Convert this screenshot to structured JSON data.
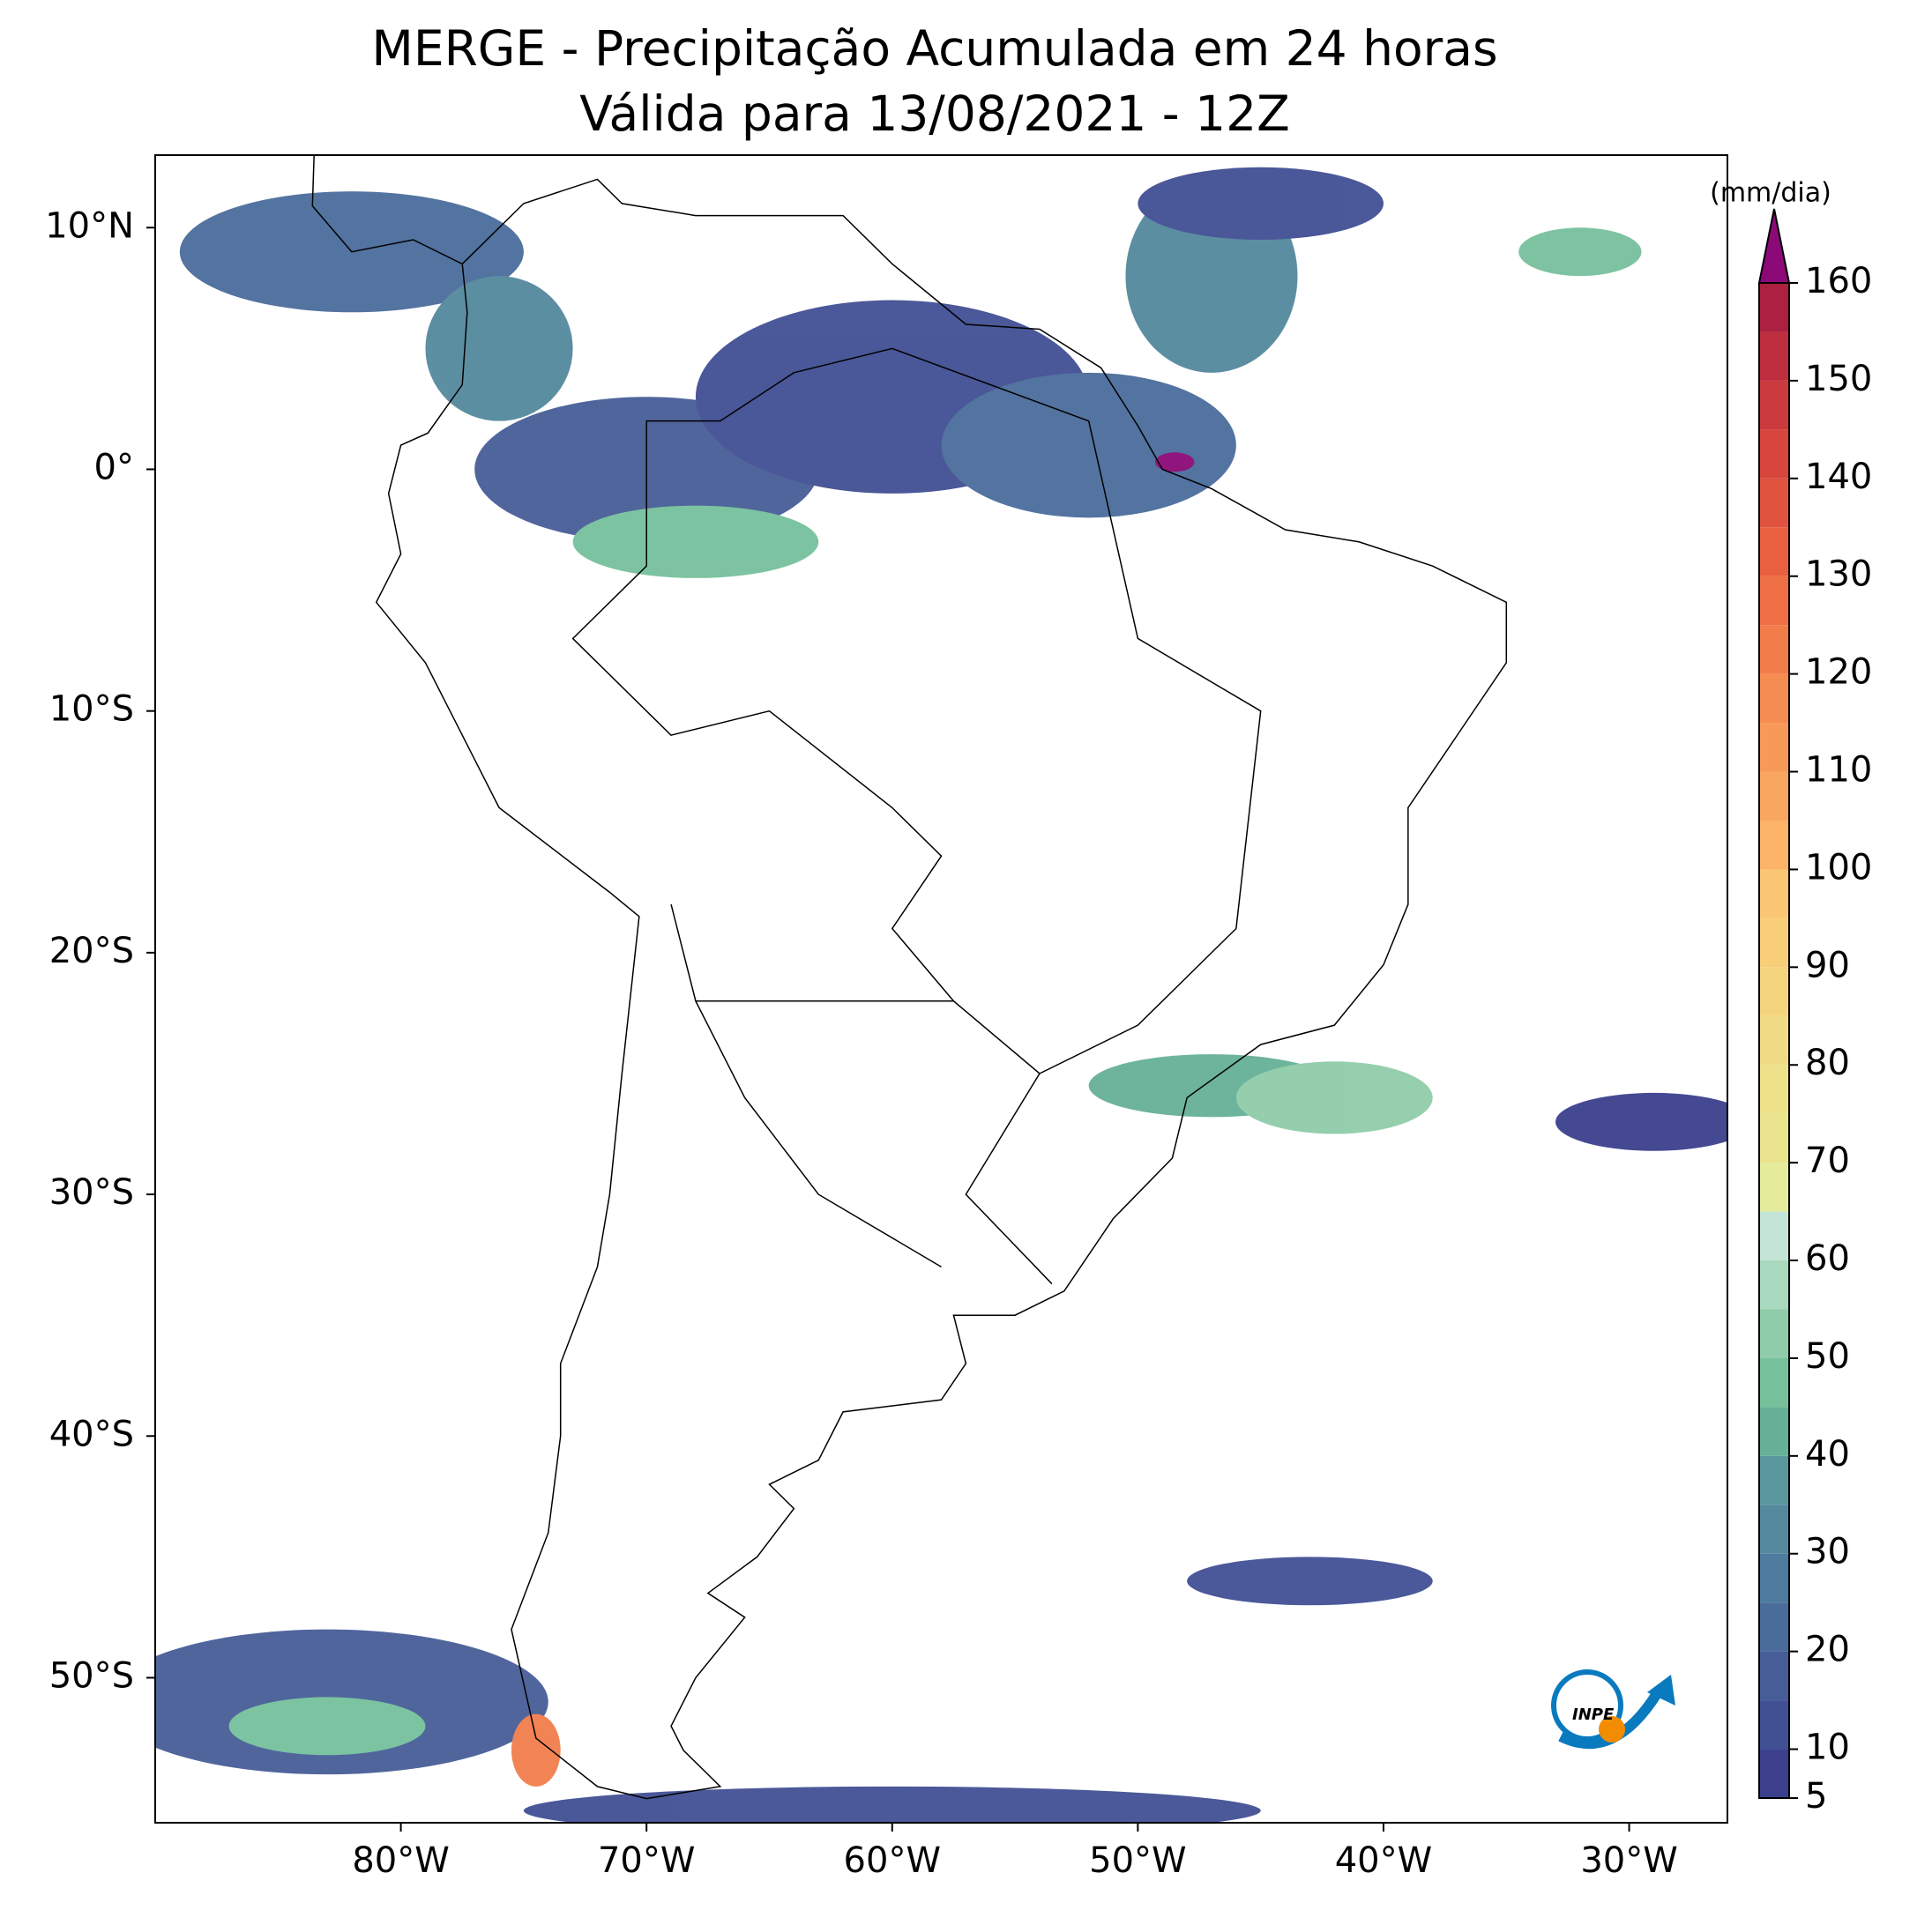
{
  "chart_data": {
    "type": "map",
    "title": "MERGE - Precipitação Acumulada em 24 horas",
    "subtitle": "Válida para 13/08/2021 - 12Z",
    "xlim": [
      -90,
      -26
    ],
    "ylim": [
      -56,
      13
    ],
    "xticks": [
      {
        "value": -80,
        "label": "80°W"
      },
      {
        "value": -70,
        "label": "70°W"
      },
      {
        "value": -60,
        "label": "60°W"
      },
      {
        "value": -50,
        "label": "50°W"
      },
      {
        "value": -40,
        "label": "40°W"
      },
      {
        "value": -30,
        "label": "30°W"
      }
    ],
    "yticks": [
      {
        "value": 10,
        "label": "10°N"
      },
      {
        "value": 0,
        "label": "0°"
      },
      {
        "value": -10,
        "label": "10°S"
      },
      {
        "value": -20,
        "label": "20°S"
      },
      {
        "value": -30,
        "label": "30°S"
      },
      {
        "value": -40,
        "label": "40°S"
      },
      {
        "value": -50,
        "label": "50°S"
      }
    ],
    "colorbar": {
      "label": "(mm/dia)",
      "levels": [
        5,
        10,
        15,
        20,
        25,
        30,
        35,
        40,
        45,
        50,
        55,
        60,
        65,
        70,
        75,
        80,
        85,
        90,
        95,
        100,
        105,
        110,
        115,
        120,
        125,
        130,
        135,
        140,
        145,
        150,
        155,
        160
      ],
      "colors": [
        "#3b3f8c",
        "#414f93",
        "#475d97",
        "#4a6c9b",
        "#4f7b9e",
        "#54899e",
        "#5a979e",
        "#66b097",
        "#76c09c",
        "#8fcca9",
        "#a8d8be",
        "#c4e4d5",
        "#e4eb9b",
        "#e9e48d",
        "#ede28a",
        "#f1da85",
        "#f5d47f",
        "#f9ce79",
        "#fbc673",
        "#fbb468",
        "#f9a660",
        "#f79a59",
        "#f58c52",
        "#f27d4b",
        "#ee6e45",
        "#e86040",
        "#e0533e",
        "#d6463d",
        "#cb3a3d",
        "#bd2e3e",
        "#ab213f"
      ],
      "extend_color": "#8b0a78",
      "ticks": [
        5,
        10,
        20,
        30,
        40,
        50,
        60,
        70,
        80,
        90,
        100,
        110,
        120,
        130,
        140,
        150,
        160
      ]
    },
    "logo": "INPE"
  }
}
